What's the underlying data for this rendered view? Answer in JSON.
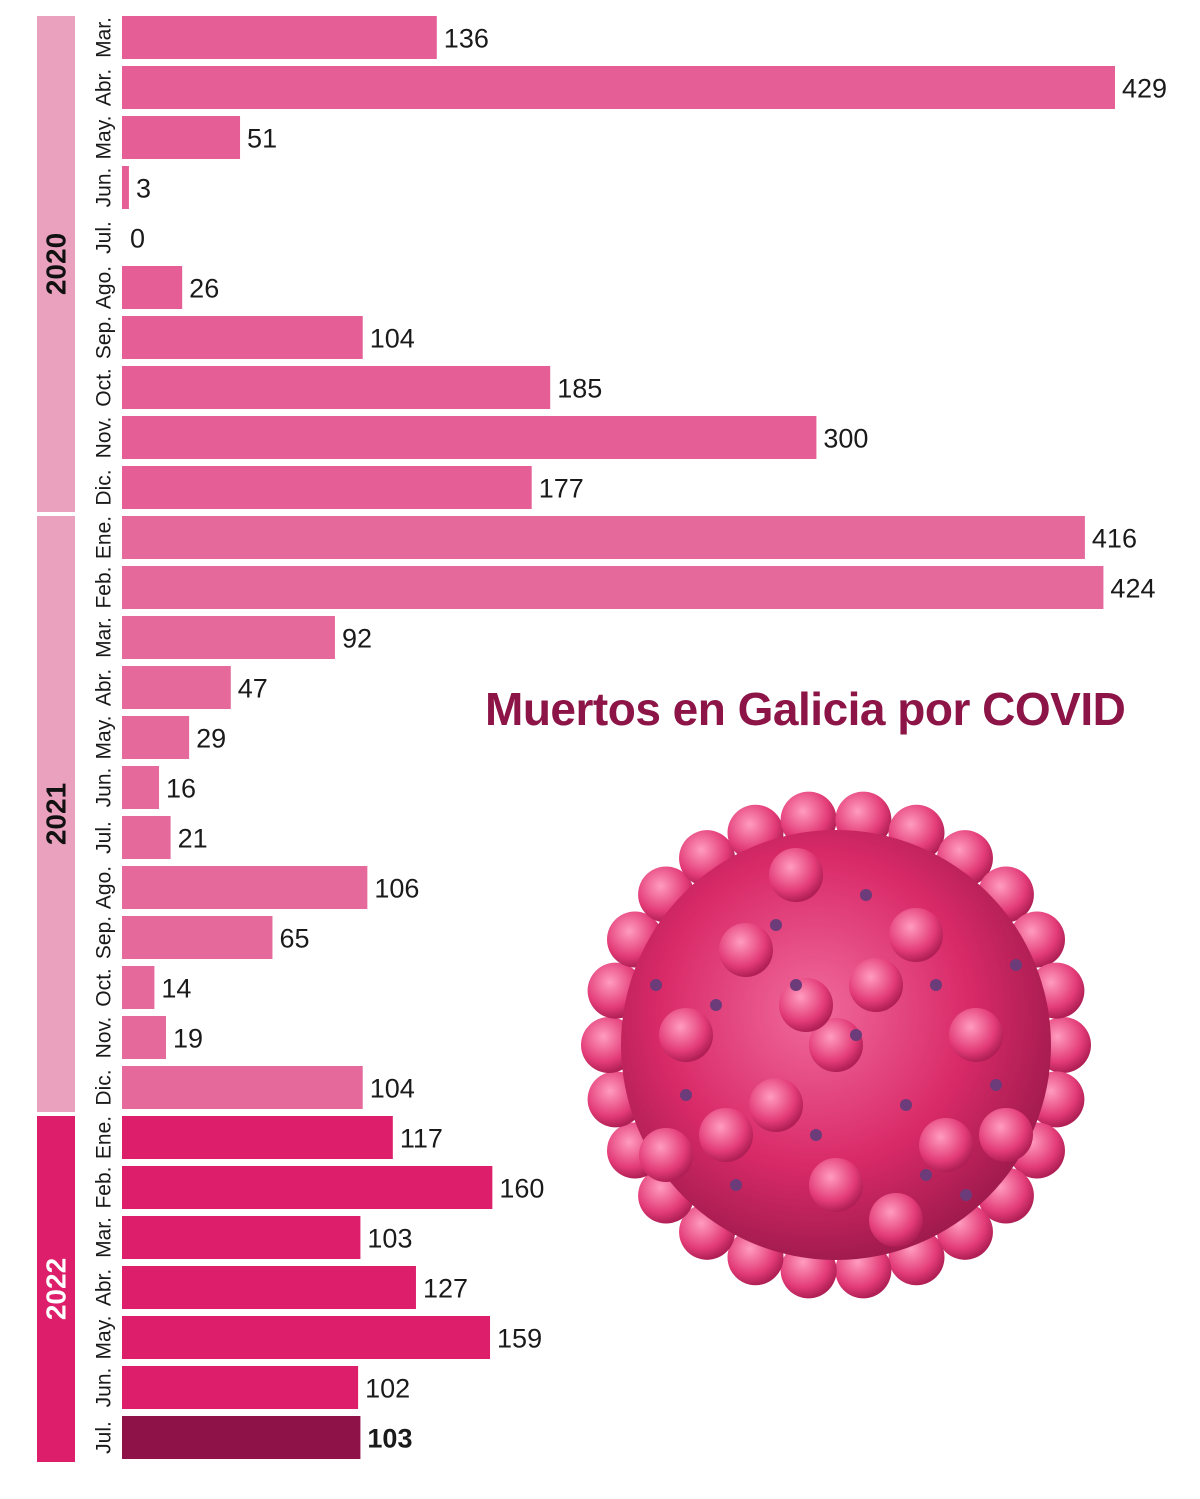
{
  "title": "Muertos en Galicia por COVID",
  "colors": {
    "bar_2020": "#e55f96",
    "bar_2021": "#e56a9b",
    "bar_2022": "#dd1f6b",
    "bar_highlight": "#8e1248",
    "band_2020": "#e9a1bd",
    "band_2021": "#e9a1bd",
    "band_2022": "#dd1f6b",
    "title": "#8c1446",
    "virus": "#e0306f"
  },
  "illustration": "coronavirus-illustration",
  "chart_data": {
    "type": "bar",
    "orientation": "horizontal",
    "title": "Muertos en Galicia por COVID",
    "xlim": [
      0,
      429
    ],
    "groups": [
      {
        "year": "2020",
        "months": [
          "Mar.",
          "Abr.",
          "May.",
          "Jun.",
          "Jul.",
          "Ago.",
          "Sep.",
          "Oct.",
          "Nov.",
          "Dic."
        ],
        "values": [
          136,
          429,
          51,
          3,
          0,
          26,
          104,
          185,
          300,
          177
        ]
      },
      {
        "year": "2021",
        "months": [
          "Ene.",
          "Feb.",
          "Mar.",
          "Abr.",
          "May.",
          "Jun.",
          "Jul.",
          "Ago.",
          "Sep.",
          "Oct.",
          "Nov.",
          "Dic."
        ],
        "values": [
          416,
          424,
          92,
          47,
          29,
          16,
          21,
          106,
          65,
          14,
          19,
          104
        ]
      },
      {
        "year": "2022",
        "months": [
          "Ene.",
          "Feb.",
          "Mar.",
          "Abr.",
          "May.",
          "Jun.",
          "Jul."
        ],
        "values": [
          117,
          160,
          103,
          127,
          159,
          102,
          103
        ]
      }
    ],
    "highlight": {
      "year": "2022",
      "month": "Jul."
    }
  }
}
